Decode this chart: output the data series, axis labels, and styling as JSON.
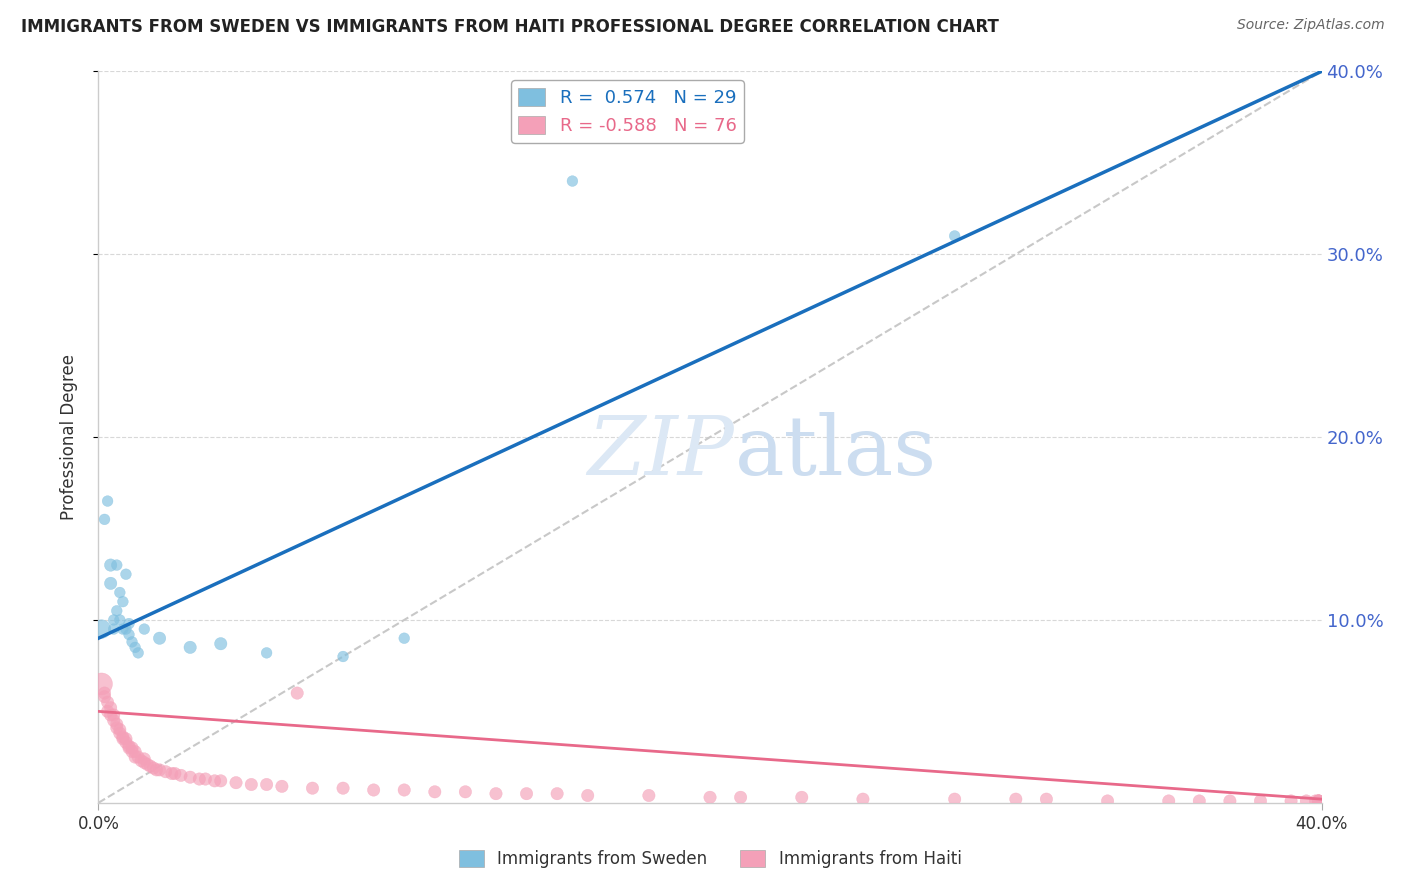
{
  "title": "IMMIGRANTS FROM SWEDEN VS IMMIGRANTS FROM HAITI PROFESSIONAL DEGREE CORRELATION CHART",
  "source": "Source: ZipAtlas.com",
  "ylabel": "Professional Degree",
  "xlim": [
    0.0,
    0.4
  ],
  "ylim": [
    0.0,
    0.4
  ],
  "yticks": [
    0.1,
    0.2,
    0.3,
    0.4
  ],
  "sweden_color": "#7fbfdf",
  "haiti_color": "#f4a0b8",
  "sweden_trend_color": "#1a6fbd",
  "haiti_trend_color": "#e8698a",
  "diagonal_color": "#c8c8c8",
  "background_color": "#ffffff",
  "grid_color": "#d8d8d8",
  "right_axis_color": "#4466cc",
  "sweden_R": 0.574,
  "sweden_N": 29,
  "haiti_R": -0.588,
  "haiti_N": 76,
  "sweden_trend_x0": 0.0,
  "sweden_trend_y0": 0.09,
  "sweden_trend_x1": 0.4,
  "sweden_trend_y1": 0.4,
  "haiti_trend_x0": 0.0,
  "haiti_trend_y0": 0.05,
  "haiti_trend_x1": 0.4,
  "haiti_trend_y1": 0.002,
  "sweden_pts_x": [
    0.001,
    0.002,
    0.003,
    0.004,
    0.004,
    0.005,
    0.005,
    0.006,
    0.006,
    0.007,
    0.007,
    0.008,
    0.008,
    0.009,
    0.009,
    0.01,
    0.01,
    0.011,
    0.012,
    0.013,
    0.015,
    0.02,
    0.03,
    0.04,
    0.055,
    0.08,
    0.1,
    0.155,
    0.28
  ],
  "sweden_pts_y": [
    0.095,
    0.155,
    0.165,
    0.12,
    0.13,
    0.095,
    0.1,
    0.105,
    0.13,
    0.1,
    0.115,
    0.095,
    0.11,
    0.095,
    0.125,
    0.092,
    0.098,
    0.088,
    0.085,
    0.082,
    0.095,
    0.09,
    0.085,
    0.087,
    0.082,
    0.08,
    0.09,
    0.34,
    0.31
  ],
  "sweden_pts_s": [
    180,
    60,
    60,
    80,
    80,
    60,
    60,
    60,
    60,
    60,
    60,
    60,
    60,
    60,
    60,
    60,
    60,
    60,
    60,
    60,
    60,
    80,
    80,
    80,
    60,
    60,
    60,
    60,
    60
  ],
  "haiti_pts_x": [
    0.001,
    0.002,
    0.002,
    0.003,
    0.003,
    0.004,
    0.004,
    0.005,
    0.005,
    0.006,
    0.006,
    0.007,
    0.007,
    0.008,
    0.008,
    0.009,
    0.009,
    0.01,
    0.01,
    0.011,
    0.011,
    0.012,
    0.012,
    0.013,
    0.014,
    0.015,
    0.015,
    0.016,
    0.017,
    0.018,
    0.019,
    0.02,
    0.022,
    0.024,
    0.025,
    0.027,
    0.03,
    0.033,
    0.035,
    0.038,
    0.04,
    0.045,
    0.05,
    0.055,
    0.06,
    0.065,
    0.07,
    0.08,
    0.09,
    0.1,
    0.11,
    0.12,
    0.13,
    0.14,
    0.15,
    0.16,
    0.18,
    0.2,
    0.21,
    0.23,
    0.25,
    0.28,
    0.3,
    0.31,
    0.33,
    0.35,
    0.36,
    0.37,
    0.38,
    0.39,
    0.395,
    0.398,
    0.399,
    0.399,
    0.399,
    0.399
  ],
  "haiti_pts_y": [
    0.065,
    0.06,
    0.058,
    0.055,
    0.05,
    0.052,
    0.048,
    0.048,
    0.045,
    0.043,
    0.041,
    0.038,
    0.04,
    0.036,
    0.035,
    0.033,
    0.035,
    0.031,
    0.03,
    0.03,
    0.028,
    0.028,
    0.025,
    0.025,
    0.023,
    0.022,
    0.024,
    0.021,
    0.02,
    0.019,
    0.018,
    0.018,
    0.017,
    0.016,
    0.016,
    0.015,
    0.014,
    0.013,
    0.013,
    0.012,
    0.012,
    0.011,
    0.01,
    0.01,
    0.009,
    0.06,
    0.008,
    0.008,
    0.007,
    0.007,
    0.006,
    0.006,
    0.005,
    0.005,
    0.005,
    0.004,
    0.004,
    0.003,
    0.003,
    0.003,
    0.002,
    0.002,
    0.002,
    0.002,
    0.001,
    0.001,
    0.001,
    0.001,
    0.001,
    0.001,
    0.001,
    0.001,
    0.001,
    0.001,
    0.001,
    0.001
  ],
  "haiti_pts_s": [
    250,
    80,
    80,
    80,
    80,
    80,
    80,
    80,
    80,
    80,
    80,
    80,
    80,
    80,
    80,
    80,
    80,
    80,
    80,
    80,
    80,
    80,
    80,
    80,
    80,
    80,
    80,
    80,
    80,
    80,
    80,
    80,
    80,
    80,
    80,
    80,
    80,
    80,
    80,
    80,
    80,
    80,
    80,
    80,
    80,
    80,
    80,
    80,
    80,
    80,
    80,
    80,
    80,
    80,
    80,
    80,
    80,
    80,
    80,
    80,
    80,
    80,
    80,
    80,
    80,
    80,
    80,
    80,
    80,
    80,
    80,
    80,
    80,
    80,
    80,
    80
  ]
}
